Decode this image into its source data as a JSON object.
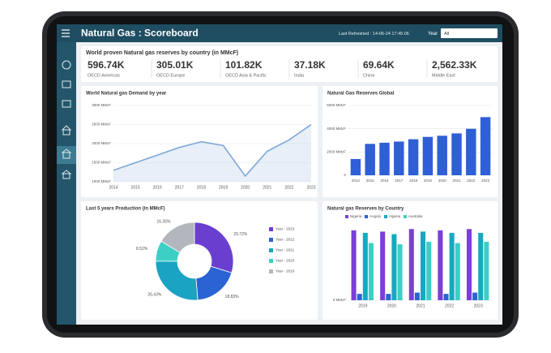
{
  "header": {
    "title": "Natural Gas : Scoreboard",
    "refreshed": "Last Refreshed : 14-06-24 17:45:06",
    "year_label": "Year",
    "year_value": "All"
  },
  "kpis": {
    "title": "World proven Natural gas reserves by country (in MMcF)",
    "items": [
      {
        "value": "596.74K",
        "label": "OECD Americas"
      },
      {
        "value": "305.01K",
        "label": "OECD Europe"
      },
      {
        "value": "101.82K",
        "label": "OECD Asia & Pacific"
      },
      {
        "value": "37.18K",
        "label": "India"
      },
      {
        "value": "69.64K",
        "label": "China"
      },
      {
        "value": "2,562.33K",
        "label": "Middle East"
      }
    ]
  },
  "chart_data": [
    {
      "type": "line",
      "title": "World Natural gas Demand by year",
      "categories": [
        "2014",
        "2015",
        "2016",
        "2017",
        "2018",
        "2019",
        "2020",
        "2021",
        "2022",
        "2023"
      ],
      "values": [
        1300,
        1500,
        1700,
        1900,
        2050,
        1950,
        1150,
        1800,
        2100,
        2500
      ],
      "color": "#7ea7d8",
      "ylim": [
        1000,
        3000
      ],
      "yticks": [
        {
          "value": 1000,
          "label": "1000 MMcF"
        },
        {
          "value": 1500,
          "label": "1500 MMcF"
        },
        {
          "value": 2000,
          "label": "2000 MMcF"
        },
        {
          "value": 2500,
          "label": "2500 MMcF"
        },
        {
          "value": 3000,
          "label": "3000 MMcF"
        }
      ],
      "grid": true
    },
    {
      "type": "bar",
      "title": "Natural Gas Reserves Global",
      "categories": [
        "2014",
        "2015",
        "2016",
        "2017",
        "2018",
        "2019",
        "2020",
        "2021",
        "2022",
        "2023"
      ],
      "values": [
        1400,
        2700,
        2800,
        2900,
        3100,
        3300,
        3400,
        3600,
        4000,
        5000
      ],
      "color": "#2f5fd6",
      "ylim": [
        0,
        6000
      ],
      "yticks": [
        0,
        {
          "value": 2000,
          "label": "2000 MMcF"
        },
        {
          "value": 4000,
          "label": "4000 MMcF"
        },
        {
          "value": 6000,
          "label": "6000 MMcF"
        }
      ],
      "grid": true
    },
    {
      "type": "pie",
      "title": "Last 5 years Production (in MMcF)",
      "categories": [
        "Year - 2023",
        "Year - 2022",
        "Year - 2021",
        "Year - 2020",
        "Year - 2019"
      ],
      "values": [
        29.72,
        18.83,
        26.43,
        8.52,
        16.35
      ],
      "value_labels": [
        "29.72%",
        "18.83%",
        "26.43%",
        "8.52%",
        "16.35%"
      ],
      "colors": [
        "#6a3fd0",
        "#2a63d4",
        "#1aa3c2",
        "#3ccfc6",
        "#b2b6bd"
      ]
    },
    {
      "type": "grouped-bar",
      "title": "Natural gas Reserves by Country",
      "categories": [
        "2019",
        "2020",
        "2021",
        "2022",
        "2023"
      ],
      "series": [
        {
          "name": "Nigeria",
          "color": "#7a3fd6",
          "values": [
            5.5,
            5.4,
            5.6,
            5.5,
            5.6
          ]
        },
        {
          "name": "Angola",
          "color": "#2a63d4",
          "values": [
            0.5,
            0.5,
            0.6,
            0.5,
            0.6
          ]
        },
        {
          "name": "Algeria",
          "color": "#18a8c0",
          "values": [
            5.3,
            5.2,
            5.4,
            5.3,
            5.3
          ]
        },
        {
          "name": "Australia",
          "color": "#3ccfc6",
          "values": [
            4.5,
            4.4,
            4.6,
            4.5,
            4.6
          ]
        }
      ],
      "ylim": [
        0,
        6
      ],
      "yticks": [
        {
          "value": 0,
          "label": "0 MMcF"
        }
      ],
      "grid": true
    }
  ]
}
